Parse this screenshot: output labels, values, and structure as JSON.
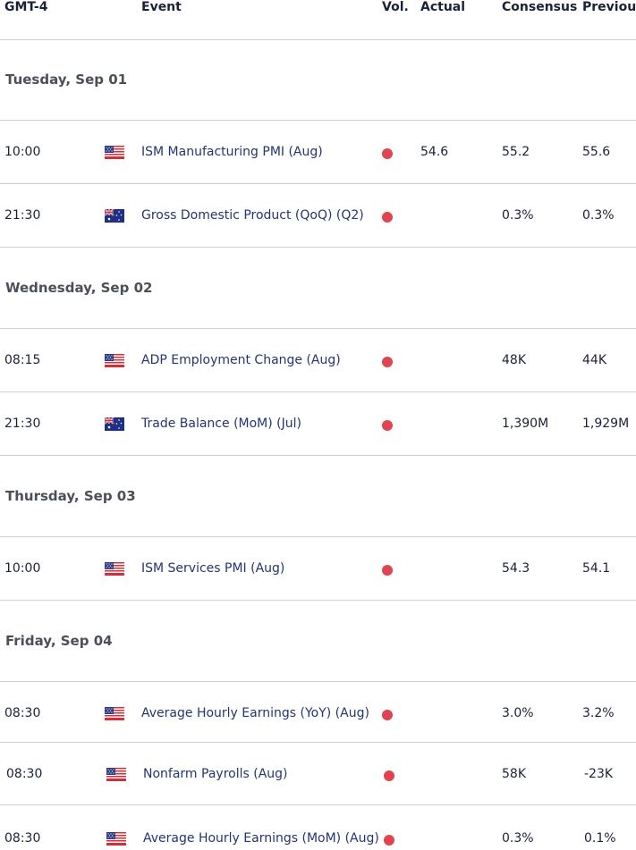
{
  "header": {
    "timezone": "GMT-4",
    "event": "Event",
    "vol": "Vol.",
    "actual": "Actual",
    "consensus": "Consensus",
    "previous": "Previous"
  },
  "days": [
    {
      "label": "Tuesday, Sep 01",
      "events": [
        {
          "time": "10:00",
          "country": "us-flag",
          "event": "ISM Manufacturing PMI (Aug)",
          "vol": "high",
          "actual": "54.6",
          "consensus": "55.2",
          "previous": "55.6"
        },
        {
          "time": "21:30",
          "country": "au-flag",
          "event": "Gross Domestic Product (QoQ) (Q2)",
          "vol": "high",
          "actual": "",
          "consensus": "0.3%",
          "previous": "0.3%"
        }
      ]
    },
    {
      "label": "Wednesday, Sep 02",
      "events": [
        {
          "time": "08:15",
          "country": "us-flag",
          "event": "ADP Employment Change (Aug)",
          "vol": "high",
          "actual": "",
          "consensus": "48K",
          "previous": "44K"
        },
        {
          "time": "21:30",
          "country": "au-flag",
          "event": "Trade Balance (MoM) (Jul)",
          "vol": "high",
          "actual": "",
          "consensus": "1,390M",
          "previous": "1,929M"
        }
      ]
    },
    {
      "label": "Thursday, Sep 03",
      "events": [
        {
          "time": "10:00",
          "country": "us-flag",
          "event": "ISM Services PMI (Aug)",
          "vol": "high",
          "actual": "",
          "consensus": "54.3",
          "previous": "54.1"
        }
      ]
    },
    {
      "label": "Friday, Sep 04",
      "events": [
        {
          "time": "08:30",
          "country": "us-flag",
          "event": "Average Hourly Earnings (YoY) (Aug)",
          "vol": "high",
          "actual": "",
          "consensus": "3.0%",
          "previous": "3.2%"
        },
        {
          "time": "08:30",
          "country": "us-flag",
          "event": "Nonfarm Payrolls (Aug)",
          "vol": "high",
          "actual": "",
          "consensus": "58K",
          "previous": "-23K"
        },
        {
          "time": "08:30",
          "country": "us-flag",
          "event": "Average Hourly Earnings (MoM) (Aug)",
          "vol": "high",
          "actual": "",
          "consensus": "0.3%",
          "previous": "0.1%"
        }
      ]
    }
  ],
  "colors": {
    "volatility_high": "#e0444e",
    "event_text": "#253472",
    "divider": "#cfcfcf"
  }
}
